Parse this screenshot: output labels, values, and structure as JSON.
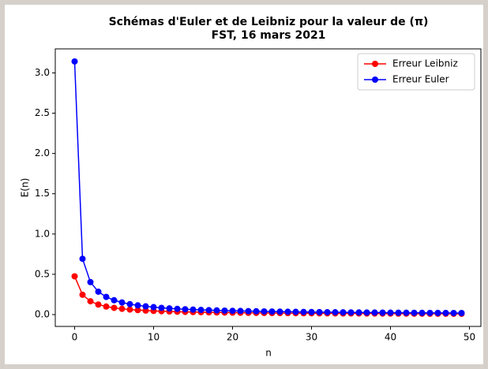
{
  "chart_data": {
    "type": "line",
    "title": "Schémas d'Euler et de Leibniz pour la valeur de (π)",
    "subtitle": "FST, 16 mars 2021",
    "x_label": "n",
    "y_label": "E(n)",
    "x": [
      0,
      1,
      2,
      3,
      4,
      5,
      6,
      7,
      8,
      9,
      10,
      11,
      12,
      13,
      14,
      15,
      16,
      17,
      18,
      19,
      20,
      21,
      22,
      23,
      24,
      25,
      26,
      27,
      28,
      29,
      30,
      31,
      32,
      33,
      34,
      35,
      36,
      37,
      38,
      39,
      40,
      41,
      42,
      43,
      44,
      45,
      46,
      47,
      48,
      49
    ],
    "series": [
      {
        "name": "Erreur Leibniz",
        "color": "#ff0000",
        "values": [
          0.475,
          0.246,
          0.1655,
          0.1245,
          0.0998,
          0.0832,
          0.0714,
          0.0625,
          0.0555,
          0.05,
          0.0454,
          0.0416,
          0.0384,
          0.0357,
          0.0333,
          0.0312,
          0.0294,
          0.0278,
          0.0263,
          0.025,
          0.0238,
          0.0227,
          0.0217,
          0.0208,
          0.02,
          0.0192,
          0.0185,
          0.0178,
          0.0172,
          0.0167,
          0.0161,
          0.0156,
          0.0151,
          0.0147,
          0.0143,
          0.0139,
          0.0135,
          0.0131,
          0.0128,
          0.0125,
          0.0122,
          0.0119,
          0.0116,
          0.0114,
          0.0111,
          0.0109,
          0.0106,
          0.0104,
          0.0102,
          0.01
        ]
      },
      {
        "name": "Erreur Euler",
        "color": "#0000ff",
        "values": [
          3.1416,
          0.6926,
          0.403,
          0.2839,
          0.219,
          0.1782,
          0.1502,
          0.1298,
          0.1143,
          0.1021,
          0.0922,
          0.0835,
          0.0768,
          0.0711,
          0.0662,
          0.0619,
          0.0582,
          0.0549,
          0.0519,
          0.0492,
          0.0468,
          0.0447,
          0.0427,
          0.0409,
          0.0392,
          0.0376,
          0.0362,
          0.0349,
          0.0337,
          0.0325,
          0.0315,
          0.0305,
          0.0295,
          0.0287,
          0.0278,
          0.027,
          0.0263,
          0.0256,
          0.025,
          0.0243,
          0.0237,
          0.0232,
          0.0226,
          0.0221,
          0.0216,
          0.0211,
          0.0207,
          0.0202,
          0.0198,
          0.0194
        ]
      }
    ],
    "xlim": [
      -2.45,
      51.45
    ],
    "ylim": [
      -0.147,
      3.298
    ],
    "xticks": [
      0,
      10,
      20,
      30,
      40,
      50
    ],
    "yticks": [
      {
        "value": 0,
        "label": "0.0"
      },
      {
        "value": 0.5,
        "label": "0.5"
      },
      {
        "value": 1,
        "label": "1.0"
      },
      {
        "value": 1.5,
        "label": "1.5"
      },
      {
        "value": 2,
        "label": "2.0"
      },
      {
        "value": 2.5,
        "label": "2.5"
      },
      {
        "value": 3,
        "label": "3.0"
      }
    ],
    "legend": "upper right",
    "markers": true
  }
}
